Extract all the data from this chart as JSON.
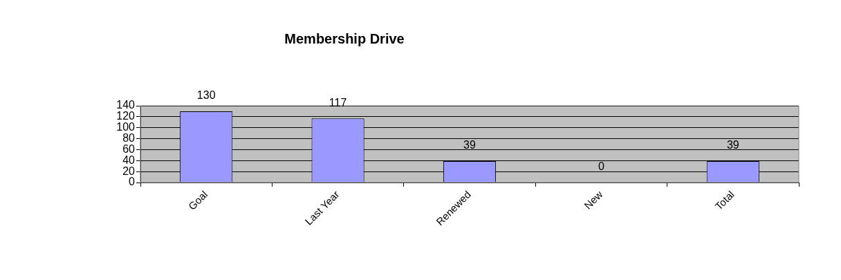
{
  "chart_data": {
    "type": "bar",
    "title": "Membership Drive",
    "categories": [
      "Goal",
      "Last Year",
      "Renewed",
      "New",
      "Total"
    ],
    "values": [
      130,
      117,
      39,
      0,
      39
    ],
    "color": "#9999ff",
    "ylim": [
      0,
      140
    ],
    "yticks": [
      0,
      20,
      40,
      60,
      80,
      100,
      120,
      140
    ],
    "grid": "y",
    "data_labels": true
  }
}
